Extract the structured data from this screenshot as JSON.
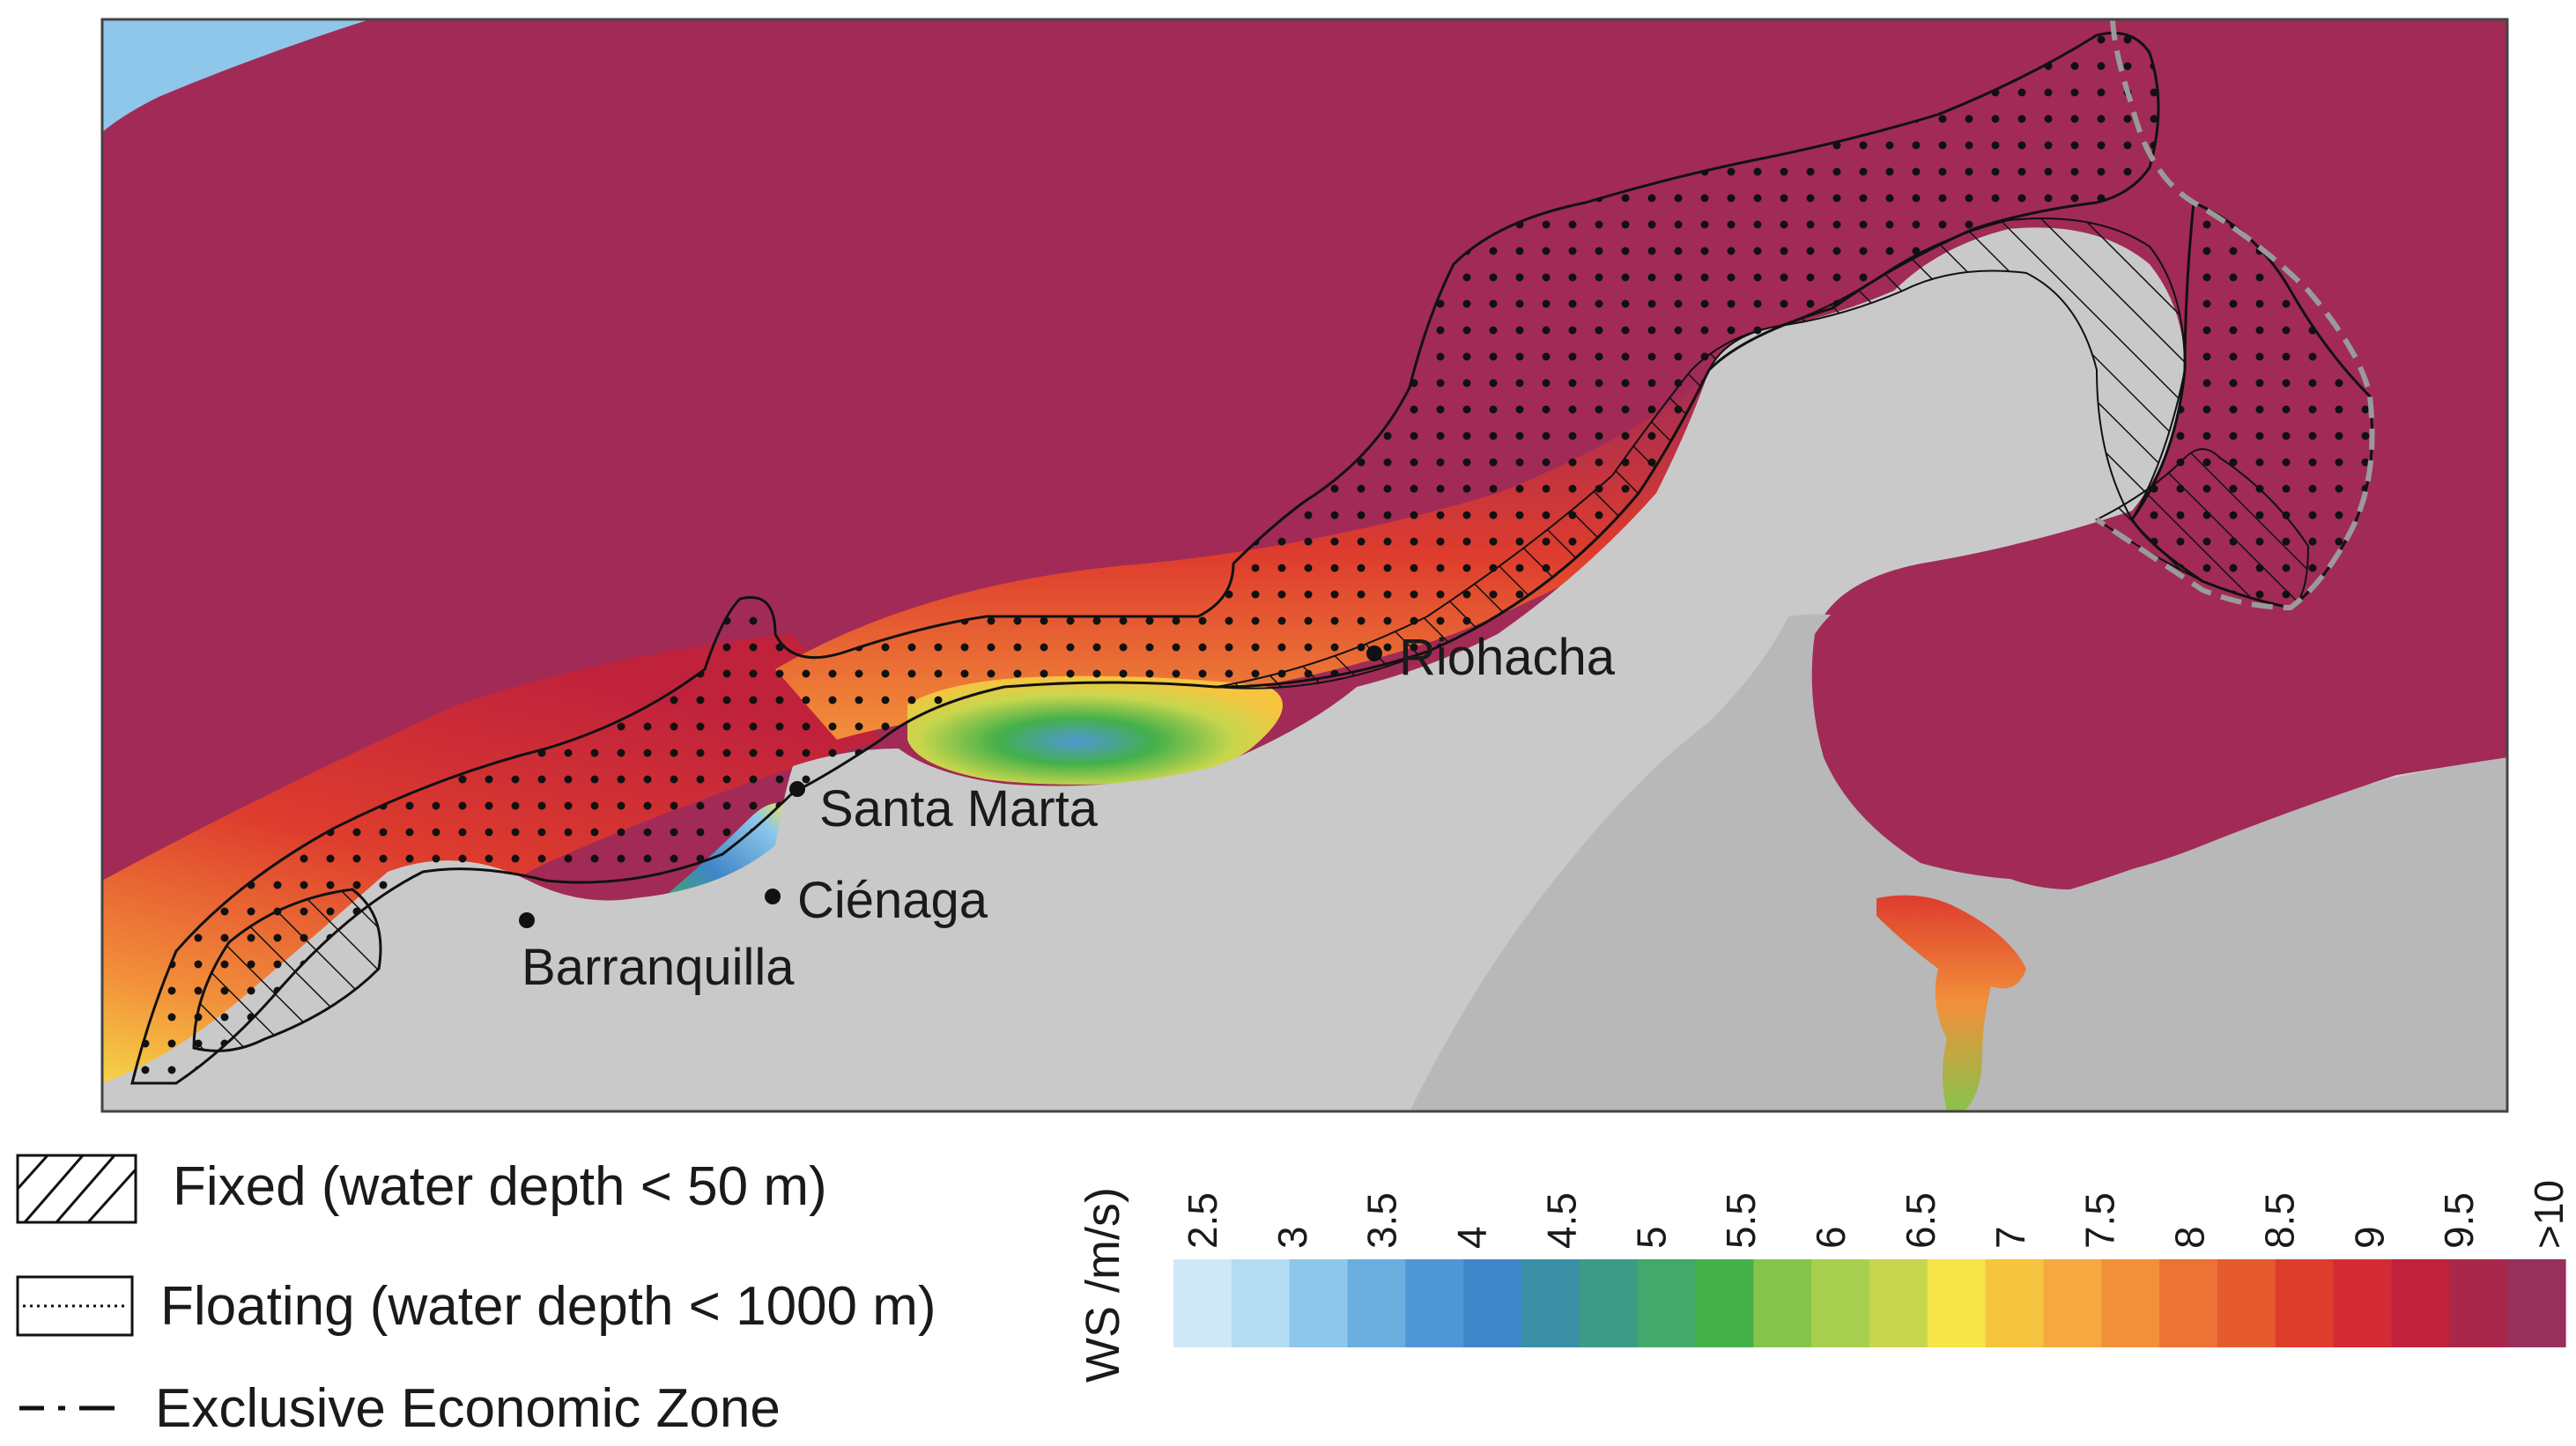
{
  "cities": [
    {
      "name": "Riohacha"
    },
    {
      "name": "Santa Marta"
    },
    {
      "name": "Ciénaga"
    },
    {
      "name": "Barranquilla"
    }
  ],
  "legend": {
    "fixed": "Fixed (water depth < 50 m)",
    "floating": "Floating (water depth < 1000 m)",
    "eez": "Exclusive Economic Zone"
  },
  "colorbar": {
    "title": "WS /m/s)",
    "ticks": [
      "2.5",
      "3",
      "3.5",
      "4",
      "4.5",
      "5",
      "5.5",
      "6",
      "6.5",
      "7",
      "7.5",
      "8",
      "8.5",
      "9",
      "9.5",
      ">10"
    ],
    "colors": [
      "#cfe8f6",
      "#b3dcf2",
      "#8ec7ea",
      "#6aaee0",
      "#4f97d4",
      "#3f86c8",
      "#3a8fa6",
      "#3c9b84",
      "#43a86b",
      "#43b04a",
      "#86c34b",
      "#a9cf4f",
      "#c8d64d",
      "#f5e549",
      "#f7c43f",
      "#f5a93e",
      "#f2903a",
      "#ec7235",
      "#e65a2f",
      "#de3c2d",
      "#d42a35",
      "#c0223c",
      "#a8274a",
      "#97305a"
    ]
  },
  "colors": {
    "ocean": "#a12b56",
    "land": "#c9c9c9",
    "land_dark": "#b8b8b8",
    "sea_light": "#8ec7ea"
  }
}
